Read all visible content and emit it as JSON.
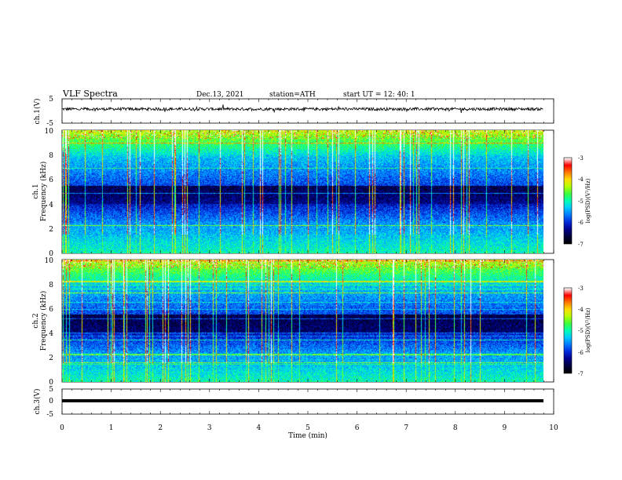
{
  "header": {
    "title": "VLF  Spectra",
    "date": "Dec.13, 2021",
    "station": "station=ATH",
    "start_ut": "start  UT  =    12: 40: 1"
  },
  "chart_data": [
    {
      "type": "line",
      "panel": "ch1-waveform",
      "ylabel": "ch.1(V)",
      "ylim": [
        -5,
        5
      ],
      "y_ticks": [
        "5",
        "-5"
      ],
      "xlim": [
        0,
        10
      ],
      "series": [
        {
          "values_description_level_V": 0.8,
          "noise_V": 0.6
        }
      ],
      "line_color": "#000000"
    },
    {
      "type": "heatmap",
      "panel": "ch1-spectrogram",
      "ylabel_line1": "ch.1",
      "ylabel_line2": "Frequency  (kHz)",
      "ylim": [
        0,
        10
      ],
      "y_ticks": [
        "0",
        "2",
        "4",
        "6",
        "8",
        "10"
      ],
      "xlim": [
        0,
        9.8
      ],
      "colorbar": {
        "label": "log(PSD)(V²/Hz)",
        "range": [
          -7,
          -3
        ],
        "ticks": [
          "-3",
          "-4",
          "-5",
          "-6",
          "-7"
        ]
      }
    },
    {
      "type": "heatmap",
      "panel": "ch2-spectrogram",
      "ylabel_line1": "ch.2",
      "ylabel_line2": "Frequency  (kHz)",
      "ylim": [
        0,
        10
      ],
      "y_ticks": [
        "0",
        "2",
        "4",
        "6",
        "8",
        "10"
      ],
      "xlim": [
        0,
        9.8
      ],
      "colorbar": {
        "label": "log(PSD)(V²/Hz)",
        "range": [
          -7,
          -3
        ],
        "ticks": [
          "-3",
          "-4",
          "-5",
          "-6",
          "-7"
        ]
      }
    },
    {
      "type": "line",
      "panel": "ch3-waveform",
      "ylabel": "ch.3(V)",
      "ylim": [
        -5,
        5
      ],
      "y_ticks": [
        "5",
        "0",
        "-5"
      ],
      "xlim": [
        0,
        10
      ],
      "series": [
        {
          "constant_V": 0
        }
      ],
      "line_color": "#000000"
    }
  ],
  "x_axis": {
    "label": "Time  (min)",
    "range": [
      0,
      10
    ],
    "ticks": [
      "0",
      "1",
      "2",
      "3",
      "4",
      "5",
      "6",
      "7",
      "8",
      "9",
      "10"
    ]
  },
  "colormap": [
    "#000000",
    "#00003c",
    "#00008c",
    "#0028dc",
    "#0078ff",
    "#00c8ff",
    "#00ffb4",
    "#3cff3c",
    "#b4ff00",
    "#ffdc00",
    "#ff7800",
    "#ff0000",
    "#ffffff"
  ]
}
